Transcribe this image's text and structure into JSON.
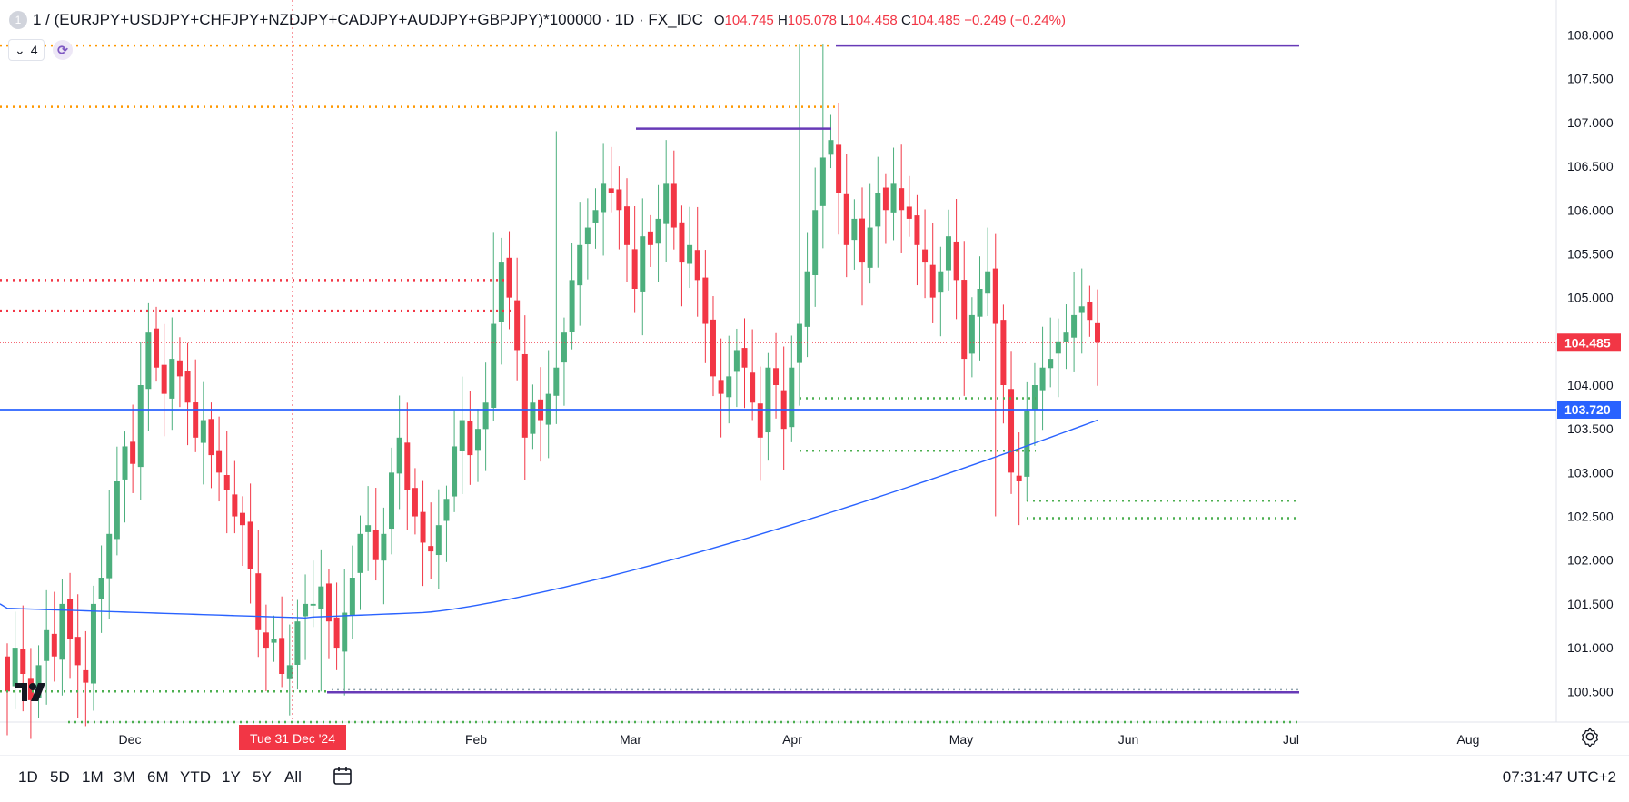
{
  "header": {
    "symbol_icon": "1",
    "symbol": "1 / (EURJPY+USDJPY+CHFJPY+NZDJPY+CADJPY+AUDJPY+GBPJPY)*100000 · 1D · FX_IDC",
    "open_label": "O",
    "open": "104.745",
    "high_label": "H",
    "high": "105.078",
    "low_label": "L",
    "low": "104.458",
    "close_label": "C",
    "close": "104.485",
    "change": "−0.249 (−0.24%)"
  },
  "indicators": {
    "count": "4",
    "chevron": "chevron-down-icon",
    "sync": "sync-icon"
  },
  "price_axis": {
    "ticks": [
      "108.000",
      "107.500",
      "107.000",
      "106.500",
      "106.000",
      "105.500",
      "105.000",
      "104.500",
      "104.000",
      "103.500",
      "103.000",
      "102.500",
      "102.000",
      "101.500",
      "101.000",
      "100.500"
    ],
    "last_price_label": "104.485",
    "hline_label": "103.720"
  },
  "time_axis": {
    "labels": [
      "Dec",
      "Feb",
      "Mar",
      "Apr",
      "May",
      "Jun",
      "Jul",
      "Aug"
    ],
    "crosshair_label": "Tue 31 Dec '24"
  },
  "bottom_bar": {
    "timeframes": [
      "1D",
      "5D",
      "1M",
      "3M",
      "6M",
      "YTD",
      "1Y",
      "5Y",
      "All"
    ],
    "calendar_icon": "calendar-icon",
    "clock": "07:31:47 UTC+2"
  },
  "colors": {
    "up": "#26a69a",
    "up_fill": "#4caf7d",
    "down": "#f23645",
    "ma": "#2962ff",
    "hline": "#2962ff",
    "purple": "#673ab7",
    "orange": "#ff9800",
    "green_dotted": "#4caf50",
    "red_dotted": "#f23645"
  },
  "chart_data": {
    "type": "candlestick",
    "series_label": "1 / (EURJPY+USDJPY+CHFJPY+NZDJPY+CADJPY+AUDJPY+GBPJPY)*100000",
    "timeframe": "1D",
    "y_range": [
      100.15,
      108.4
    ],
    "last_close": 104.485,
    "horizontal_line": 103.72,
    "closes": [
      100.5,
      101.0,
      100.7,
      100.4,
      100.8,
      101.2,
      100.9,
      101.5,
      101.1,
      100.8,
      100.6,
      101.5,
      101.8,
      102.3,
      102.9,
      103.3,
      103.1,
      104.0,
      104.6,
      104.2,
      103.9,
      104.3,
      104.1,
      103.8,
      103.4,
      103.6,
      103.2,
      103.0,
      102.8,
      102.5,
      102.4,
      101.9,
      101.2,
      101.0,
      101.1,
      100.7,
      100.8,
      101.3,
      101.5,
      101.5,
      101.7,
      101.3,
      101.0,
      101.4,
      101.8,
      102.3,
      102.4,
      102.0,
      102.3,
      103.0,
      103.4,
      102.8,
      102.5,
      102.2,
      102.1,
      102.4,
      102.7,
      103.3,
      103.6,
      103.2,
      103.5,
      103.8,
      104.7,
      105.4,
      105.0,
      104.4,
      103.4,
      103.8,
      103.6,
      103.9,
      104.2,
      104.6,
      105.2,
      105.6,
      105.8,
      106.0,
      106.3,
      106.2,
      106.0,
      105.6,
      105.1,
      105.7,
      105.6,
      105.9,
      106.3,
      105.8,
      105.4,
      105.6,
      105.2,
      104.7,
      104.1,
      103.9,
      104.1,
      104.4,
      104.2,
      103.8,
      103.4,
      104.2,
      104.0,
      103.5,
      104.2,
      104.7,
      105.3,
      106.0,
      106.6,
      106.8,
      106.2,
      105.6,
      105.9,
      105.4,
      105.8,
      106.2,
      106.0,
      106.3,
      106.0,
      105.9,
      105.6,
      105.4,
      105.0,
      105.3,
      105.7,
      105.2,
      104.3,
      104.8,
      105.1,
      105.3,
      104.7,
      104.0,
      103.0,
      102.9,
      103.7,
      104.0,
      104.2,
      104.3,
      104.5,
      104.6,
      104.8,
      104.9,
      104.745,
      104.485
    ],
    "ma_label": "moving average (blue)"
  }
}
